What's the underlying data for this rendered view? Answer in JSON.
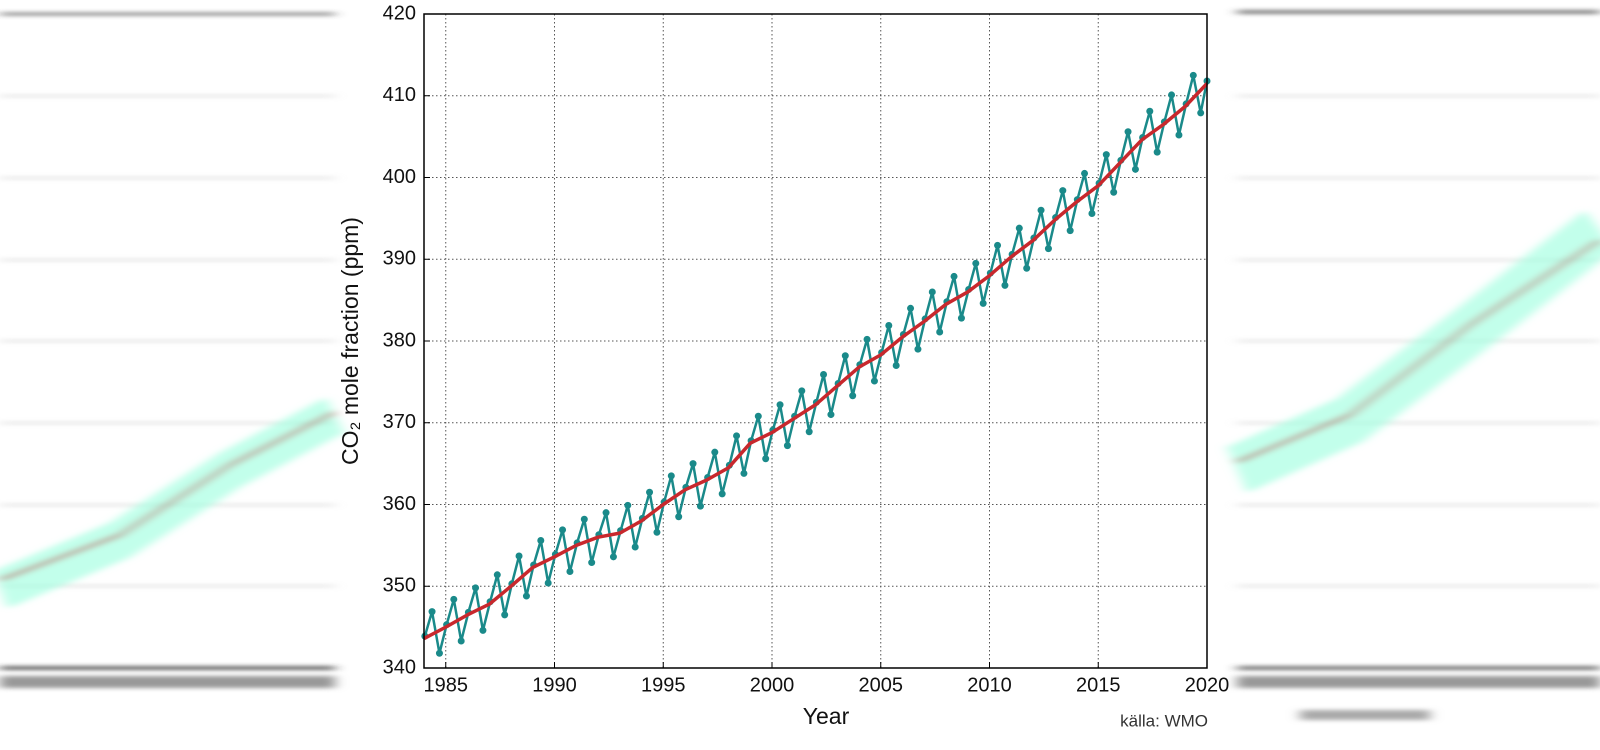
{
  "chart_data": {
    "type": "line",
    "xlabel": "Year",
    "ylabel": "CO₂ mole fraction (ppm)",
    "source": "källa: WMO",
    "xlim": [
      1984,
      2020
    ],
    "xticks": [
      1985,
      1990,
      1995,
      2000,
      2005,
      2010,
      2015,
      2020
    ],
    "ylim": [
      340,
      420
    ],
    "yticks": [
      340,
      350,
      360,
      370,
      380,
      390,
      400,
      410,
      420
    ],
    "grid": true,
    "series": [
      {
        "color": "#1a8a8a",
        "markers": true,
        "x": [
          1984.04,
          1984.37,
          1984.71,
          1985.04,
          1985.37,
          1985.71,
          1986.04,
          1986.37,
          1986.71,
          1987.04,
          1987.37,
          1987.71,
          1988.04,
          1988.37,
          1988.71,
          1989.04,
          1989.37,
          1989.71,
          1990.04,
          1990.37,
          1990.71,
          1991.04,
          1991.37,
          1991.71,
          1992.04,
          1992.37,
          1992.71,
          1993.04,
          1993.37,
          1993.71,
          1994.04,
          1994.37,
          1994.71,
          1995.04,
          1995.37,
          1995.71,
          1996.04,
          1996.37,
          1996.71,
          1997.04,
          1997.37,
          1997.71,
          1998.04,
          1998.37,
          1998.71,
          1999.04,
          1999.37,
          1999.71,
          2000.04,
          2000.37,
          2000.71,
          2001.04,
          2001.37,
          2001.71,
          2002.04,
          2002.37,
          2002.71,
          2003.04,
          2003.37,
          2003.71,
          2004.04,
          2004.37,
          2004.71,
          2005.04,
          2005.37,
          2005.71,
          2006.04,
          2006.37,
          2006.71,
          2007.04,
          2007.37,
          2007.71,
          2008.04,
          2008.37,
          2008.71,
          2009.04,
          2009.37,
          2009.71,
          2010.04,
          2010.37,
          2010.71,
          2011.04,
          2011.37,
          2011.71,
          2012.04,
          2012.37,
          2012.71,
          2013.04,
          2013.37,
          2013.71,
          2014.04,
          2014.37,
          2014.71,
          2015.04,
          2015.37,
          2015.71,
          2016.04,
          2016.37,
          2016.71,
          2017.04,
          2017.37,
          2017.71,
          2018.04,
          2018.37,
          2018.71,
          2019.04,
          2019.37,
          2019.71,
          2020.0
        ],
        "values": [
          343.9,
          346.9,
          341.8,
          345.3,
          348.4,
          343.3,
          346.8,
          349.8,
          344.6,
          348.1,
          351.4,
          346.5,
          350.3,
          353.7,
          348.8,
          352.6,
          355.6,
          350.4,
          353.9,
          356.9,
          351.8,
          355.3,
          358.2,
          352.9,
          356.3,
          359.0,
          353.6,
          356.8,
          359.9,
          354.8,
          358.3,
          361.5,
          356.6,
          360.3,
          363.5,
          358.5,
          362.1,
          365.0,
          359.8,
          363.3,
          366.4,
          361.3,
          364.8,
          368.4,
          363.8,
          367.8,
          370.8,
          365.6,
          369.1,
          372.2,
          367.2,
          370.8,
          373.9,
          368.9,
          372.5,
          375.9,
          371.0,
          374.8,
          378.2,
          373.3,
          377.1,
          380.2,
          375.1,
          378.6,
          381.9,
          377.0,
          380.8,
          384.0,
          379.0,
          382.7,
          386.0,
          381.1,
          384.8,
          387.9,
          382.8,
          386.3,
          389.5,
          384.6,
          388.3,
          391.7,
          386.8,
          390.6,
          393.8,
          388.9,
          392.6,
          396.0,
          391.3,
          395.1,
          398.4,
          393.5,
          397.3,
          400.5,
          395.6,
          399.3,
          402.8,
          398.2,
          402.1,
          405.6,
          401.0,
          404.9,
          408.1,
          403.1,
          406.8,
          410.1,
          405.2,
          409.0,
          412.5,
          407.9,
          411.8
        ]
      },
      {
        "color": "#c8282d",
        "markers": false,
        "x": [
          1984,
          1985,
          1986,
          1987,
          1988,
          1989,
          1990,
          1991,
          1992,
          1993,
          1994,
          1995,
          1996,
          1997,
          1998,
          1999,
          2000,
          2001,
          2002,
          2003,
          2004,
          2005,
          2006,
          2007,
          2008,
          2009,
          2010,
          2011,
          2012,
          2013,
          2014,
          2015,
          2016,
          2017,
          2018,
          2019,
          2020
        ],
        "values": [
          343.6,
          345.0,
          346.5,
          347.8,
          350.0,
          352.3,
          353.6,
          355.0,
          356.0,
          356.5,
          358.0,
          360.0,
          361.8,
          363.0,
          364.5,
          367.5,
          368.8,
          370.5,
          372.2,
          374.5,
          376.8,
          378.3,
          380.5,
          382.4,
          384.5,
          386.0,
          388.0,
          390.3,
          392.3,
          394.8,
          397.0,
          399.0,
          401.8,
          404.6,
          406.5,
          408.7,
          411.5
        ]
      }
    ]
  }
}
